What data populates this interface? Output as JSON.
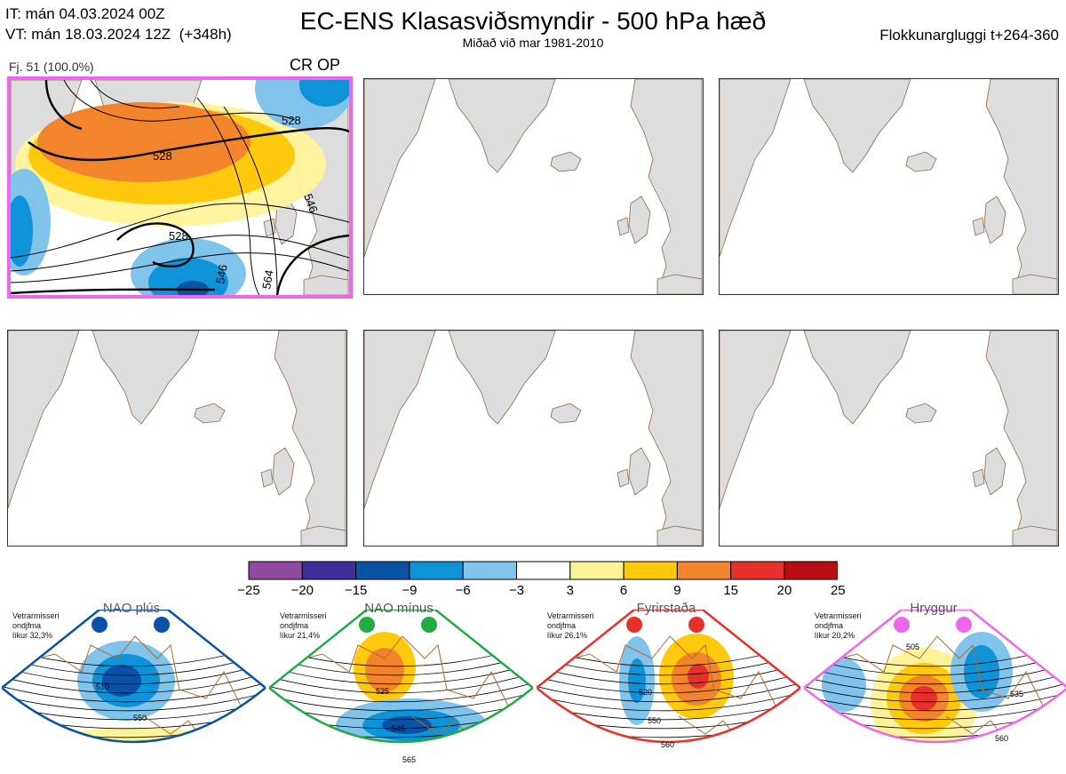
{
  "header": {
    "init_time": "IT: mán 04.03.2024 00Z",
    "valid_time": "VT: mán 18.03.2024 12Z  (+348h)",
    "title": "EC-ENS Klasasviðsmyndir - 500 hPa hæð",
    "subtitle": "Miðað við mar 1981-2010",
    "window": "Flokkunargluggi t+264-360"
  },
  "panel1": {
    "caption": "Fj. 51 (100.0%)",
    "regime_label": "CR OP",
    "contours": [
      "528",
      "528",
      "528",
      "528",
      "546",
      "546",
      "546",
      "564"
    ]
  },
  "colorbar": {
    "colors": [
      "#8e4aa0",
      "#3f2d9a",
      "#0a52a5",
      "#0e93d8",
      "#80c4ec",
      "#ffffff",
      "#fff39a",
      "#ffc90e",
      "#f2852c",
      "#e8302a",
      "#b80d14"
    ],
    "ticks": [
      "−25",
      "−20",
      "−15",
      "−9",
      "−6",
      "−3",
      "3",
      "6",
      "9",
      "15",
      "20",
      "25"
    ]
  },
  "regimes": [
    {
      "name": "NAO plús",
      "note": "Vetrarmisseri\nondjfma\nlíkur 32,3%",
      "color": "#0a52a5",
      "labels": [
        "510",
        "550"
      ]
    },
    {
      "name": "NAO mínus",
      "note": "Vetrarmisseri\nondjfma\nlíkur 21,4%",
      "color": "#22aa44",
      "labels": [
        "525",
        "545",
        "565"
      ]
    },
    {
      "name": "Fyrirstaða",
      "note": "Vetrarmisseri\nondjfma\nlíkur 26,1%",
      "color": "#e8302a",
      "labels": [
        "520",
        "550",
        "560"
      ]
    },
    {
      "name": "Hryggur",
      "note": "Vetrarmisseri\nondjfma\nlíkur 20,2%",
      "color": "#ee66ee",
      "labels": [
        "505",
        "535",
        "560"
      ]
    }
  ]
}
